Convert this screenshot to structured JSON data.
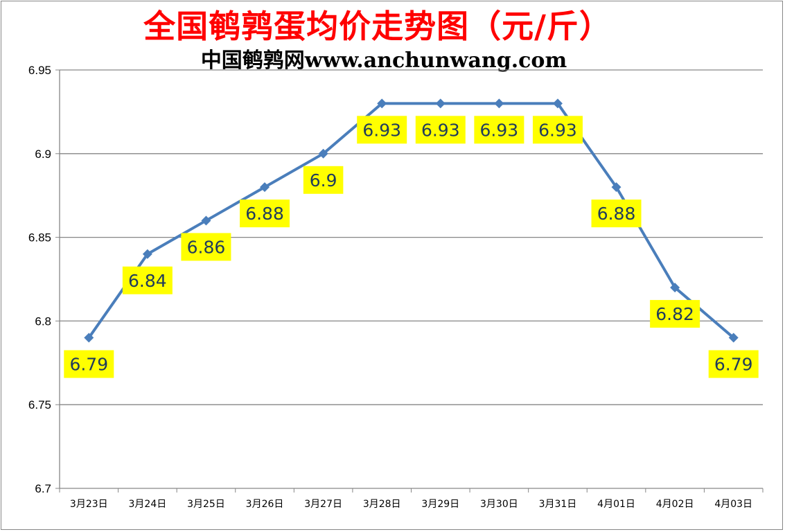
{
  "chart_data": {
    "type": "line",
    "title": "全国鹌鹑蛋均价走势图（元/斤）",
    "subtitle": "中国鹌鹑网www.anchunwang.com",
    "categories": [
      "3月23日",
      "3月24日",
      "3月25日",
      "3月26日",
      "3月27日",
      "3月28日",
      "3月29日",
      "3月30日",
      "3月31日",
      "4月01日",
      "4月02日",
      "4月03日"
    ],
    "series": [
      {
        "values": [
          6.79,
          6.84,
          6.86,
          6.88,
          6.9,
          6.93,
          6.93,
          6.93,
          6.93,
          6.88,
          6.82,
          6.79
        ]
      }
    ],
    "data_labels": [
      "6.79",
      "6.84",
      "6.86",
      "6.88",
      "6.9",
      "6.93",
      "6.93",
      "6.93",
      "6.93",
      "6.88",
      "6.82",
      "6.79"
    ],
    "y_ticks": [
      "6.7",
      "6.75",
      "6.8",
      "6.85",
      "6.9",
      "6.95"
    ],
    "ylim": [
      6.7,
      6.95
    ],
    "grid": true,
    "legend": "none",
    "colors": {
      "line": "#4a7ebb",
      "label_background": "#ffff00",
      "label_text": "#1f3b5c",
      "title": "#ff0000",
      "gridline": "#868686"
    }
  }
}
